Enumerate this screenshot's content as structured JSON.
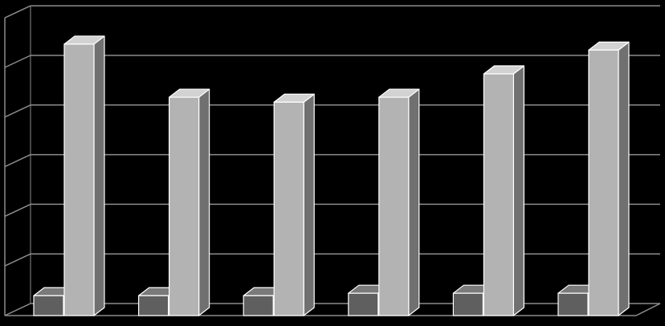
{
  "chart_data": {
    "type": "bar",
    "style": "3d-clustered-column",
    "categories": [
      "",
      "",
      "",
      "",
      "",
      ""
    ],
    "series": [
      {
        "values": [
          0.4,
          0.4,
          0.4,
          0.45,
          0.45,
          0.45
        ]
      },
      {
        "values": [
          5.47,
          4.4,
          4.3,
          4.4,
          4.87,
          5.35
        ]
      }
    ],
    "title": "",
    "xlabel": "",
    "ylabel": "",
    "ylim": [
      0,
      6
    ],
    "yticks": [
      0,
      1,
      2,
      3,
      4,
      5,
      6
    ],
    "grid": true,
    "legend": "none",
    "colors": {
      "background": "#000000",
      "gridline": "#8c8c8c",
      "series1_front": "#5f5f5f",
      "series1_side": "#3c3c3c",
      "series1_top": "#7a7a7a",
      "series2_front": "#b3b3b3",
      "series2_side": "#707070",
      "series2_top": "#d2d2d2",
      "bar_edge": "#ffffff"
    }
  }
}
